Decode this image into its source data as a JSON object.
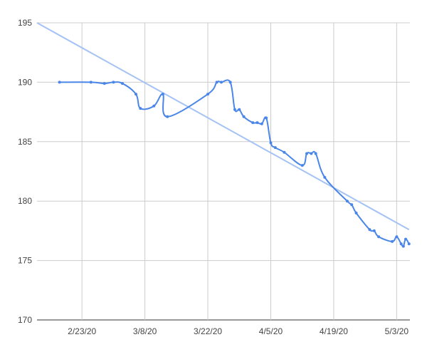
{
  "chart_data": {
    "type": "line",
    "title": "",
    "xlabel": "",
    "ylabel": "",
    "x_range": [
      "2020-02-13",
      "2020-05-05"
    ],
    "ylim": [
      170,
      195
    ],
    "grid": true,
    "legend": "none",
    "y_ticks": [
      "170",
      "175",
      "180",
      "185",
      "190",
      "195"
    ],
    "x_ticks": [
      {
        "date": "2020-02-23",
        "label": "2/23/20"
      },
      {
        "date": "2020-03-08",
        "label": "3/8/20"
      },
      {
        "date": "2020-03-22",
        "label": "3/22/20"
      },
      {
        "date": "2020-04-05",
        "label": "4/5/20"
      },
      {
        "date": "2020-04-19",
        "label": "4/19/20"
      },
      {
        "date": "2020-05-03",
        "label": "5/3/20"
      }
    ],
    "series": [
      {
        "color": "#4a86e8",
        "points": [
          {
            "x": "2020-02-18",
            "y": 190.0
          },
          {
            "x": "2020-02-25",
            "y": 190.0
          },
          {
            "x": "2020-02-28",
            "y": 189.9
          },
          {
            "x": "2020-03-01",
            "y": 190.0
          },
          {
            "x": "2020-03-03",
            "y": 189.9
          },
          {
            "x": "2020-03-06",
            "y": 189.0
          },
          {
            "x": "2020-03-07",
            "y": 187.8
          },
          {
            "x": "2020-03-10",
            "y": 188.0
          },
          {
            "x": "2020-03-12",
            "y": 189.0
          },
          {
            "x": "2020-03-13",
            "y": 187.1
          },
          {
            "x": "2020-03-22",
            "y": 189.0
          },
          {
            "x": "2020-03-24",
            "y": 190.0
          },
          {
            "x": "2020-03-25",
            "y": 190.0
          },
          {
            "x": "2020-03-27",
            "y": 190.0
          },
          {
            "x": "2020-03-28",
            "y": 187.7
          },
          {
            "x": "2020-03-29",
            "y": 187.7
          },
          {
            "x": "2020-03-30",
            "y": 187.1
          },
          {
            "x": "2020-04-01",
            "y": 186.6
          },
          {
            "x": "2020-04-02",
            "y": 186.6
          },
          {
            "x": "2020-04-03",
            "y": 186.5
          },
          {
            "x": "2020-04-04",
            "y": 187.0
          },
          {
            "x": "2020-04-05",
            "y": 184.9
          },
          {
            "x": "2020-04-06",
            "y": 184.5
          },
          {
            "x": "2020-04-08",
            "y": 184.1
          },
          {
            "x": "2020-04-12",
            "y": 183.0
          },
          {
            "x": "2020-04-13",
            "y": 184.0
          },
          {
            "x": "2020-04-14",
            "y": 184.0
          },
          {
            "x": "2020-04-15",
            "y": 184.0
          },
          {
            "x": "2020-04-17",
            "y": 182.0
          },
          {
            "x": "2020-04-22",
            "y": 180.0
          },
          {
            "x": "2020-04-23",
            "y": 179.7
          },
          {
            "x": "2020-04-24",
            "y": 179.0
          },
          {
            "x": "2020-04-27",
            "y": 177.6
          },
          {
            "x": "2020-04-28",
            "y": 177.5
          },
          {
            "x": "2020-04-29",
            "y": 177.0
          },
          {
            "x": "2020-05-02",
            "y": 176.6
          },
          {
            "x": "2020-05-03",
            "y": 177.0
          },
          {
            "x": "2020-05-04",
            "y": 176.4
          },
          {
            "x": "2020-05-04T12:00",
            "y": 176.2
          },
          {
            "x": "2020-05-05",
            "y": 176.8
          },
          {
            "x": "2020-05-05T18:00",
            "y": 176.4
          }
        ]
      },
      {
        "kind": "trendline",
        "color": "#a4c2f4",
        "points": [
          {
            "x": "2020-02-13",
            "y": 195.0
          },
          {
            "x": "2020-05-05T18:00",
            "y": 177.6
          }
        ]
      }
    ]
  }
}
